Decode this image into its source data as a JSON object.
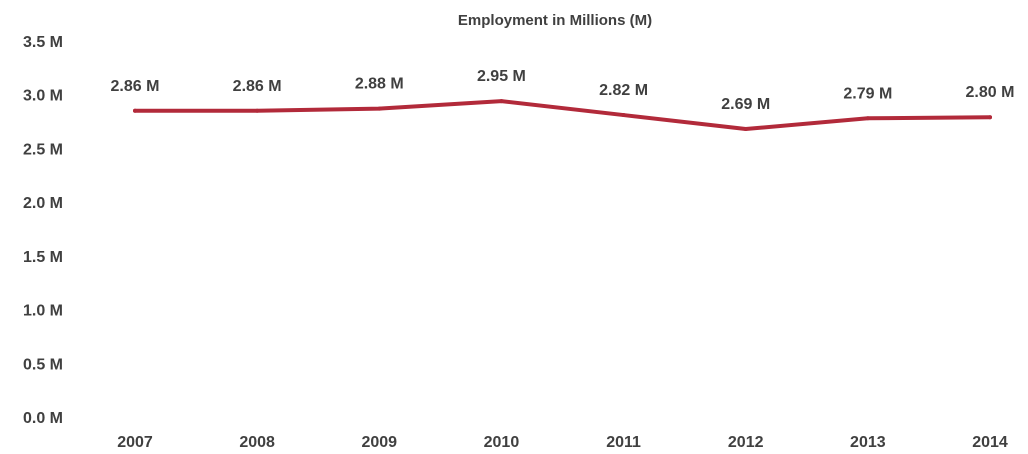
{
  "chart_data": {
    "type": "line",
    "title": "Employment in Millions (M)",
    "xlabel": "",
    "ylabel": "",
    "categories": [
      "2007",
      "2008",
      "2009",
      "2010",
      "2011",
      "2012",
      "2013",
      "2014"
    ],
    "series": [
      {
        "values": [
          2.86,
          2.86,
          2.88,
          2.95,
          2.82,
          2.69,
          2.79,
          2.8
        ],
        "labels": [
          "2.86 M",
          "2.86 M",
          "2.88 M",
          "2.95 M",
          "2.82 M",
          "2.69 M",
          "2.79 M",
          "2.80 M"
        ],
        "color": "#b22a3a"
      }
    ],
    "ylim": [
      0,
      3.5
    ],
    "yticks": [
      "0.0 M",
      "0.5 M",
      "1.0 M",
      "1.5 M",
      "2.0 M",
      "2.5 M",
      "3.0 M",
      "3.5 M"
    ],
    "grid": false,
    "legend": "none"
  }
}
